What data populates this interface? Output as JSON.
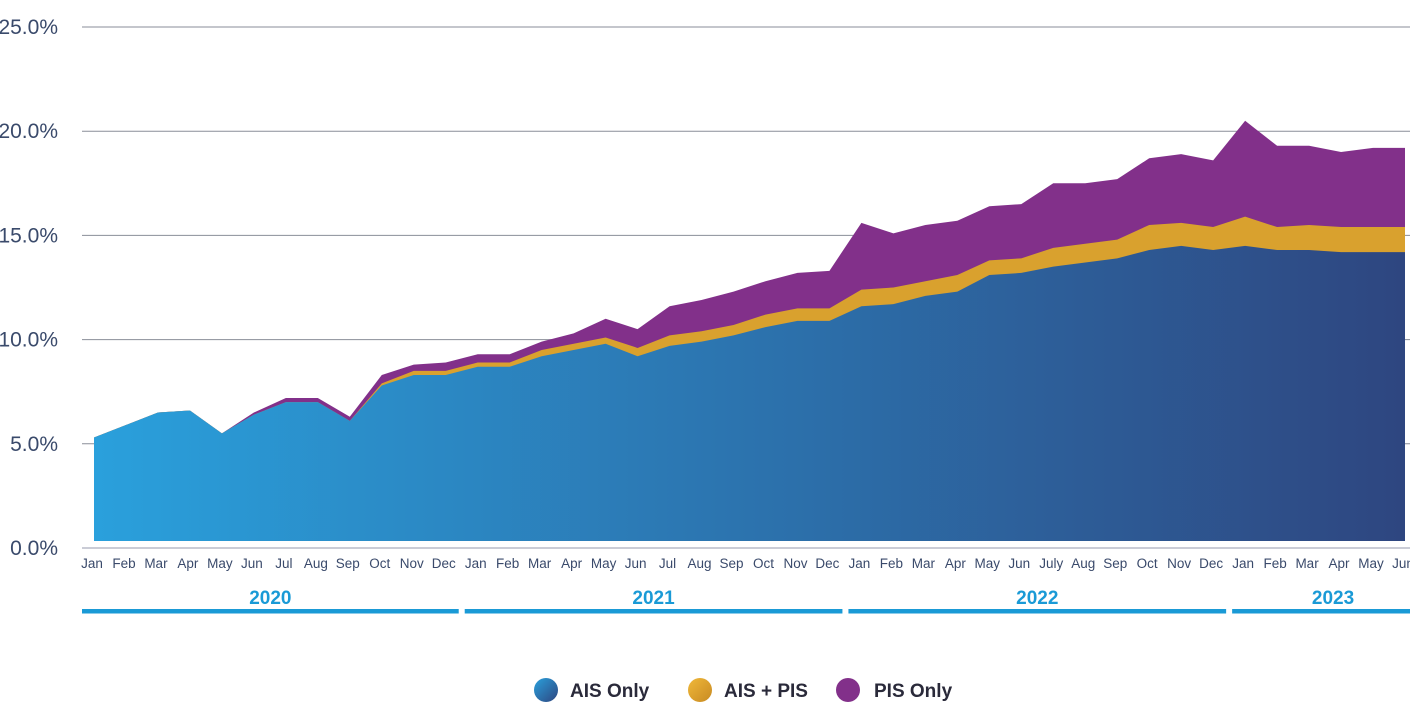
{
  "chart_data": {
    "type": "area",
    "stacked": true,
    "title": "",
    "xlabel": "",
    "ylabel": "",
    "ylim": [
      0,
      25
    ],
    "ytick_labels": [
      "0.0%",
      "5.0%",
      "10.0%",
      "15.0%",
      "20.0%",
      "25.0%"
    ],
    "ytick_values": [
      0,
      5,
      10,
      15,
      20,
      25
    ],
    "grid": "horizontal",
    "legend_position": "bottom-center",
    "categories": [
      "Jan",
      "Feb",
      "Mar",
      "Apr",
      "May",
      "Jun",
      "Jul",
      "Aug",
      "Sep",
      "Oct",
      "Nov",
      "Dec",
      "Jan",
      "Feb",
      "Mar",
      "Apr",
      "May",
      "Jun",
      "Jul",
      "Aug",
      "Sep",
      "Oct",
      "Nov",
      "Dec",
      "Jan",
      "Feb",
      "Mar",
      "Apr",
      "May",
      "Jun",
      "July",
      "Aug",
      "Sep",
      "Oct",
      "Nov",
      "Dec",
      "Jan",
      "Feb",
      "Mar",
      "Apr",
      "May",
      "Jun"
    ],
    "year_groups": [
      {
        "label": "2020",
        "start": 0,
        "end": 11
      },
      {
        "label": "2021",
        "start": 12,
        "end": 23
      },
      {
        "label": "2022",
        "start": 24,
        "end": 35
      },
      {
        "label": "2023",
        "start": 36,
        "end": 41
      }
    ],
    "series": [
      {
        "name": "AIS Only",
        "color_start": "#2aa0dc",
        "color_end": "#2e4680",
        "values": [
          5.3,
          5.9,
          6.5,
          6.6,
          5.5,
          6.4,
          7.0,
          7.0,
          6.1,
          7.8,
          8.3,
          8.3,
          8.7,
          8.7,
          9.2,
          9.5,
          9.8,
          9.2,
          9.7,
          9.9,
          10.2,
          10.6,
          10.9,
          10.9,
          11.6,
          11.7,
          12.1,
          12.3,
          13.1,
          13.2,
          13.5,
          13.7,
          13.9,
          14.3,
          14.5,
          14.3,
          14.5,
          14.3,
          14.3,
          14.2,
          14.2,
          14.2
        ]
      },
      {
        "name": "AIS + PIS",
        "color": "#d9a12e",
        "values": [
          0,
          0,
          0,
          0,
          0,
          0,
          0,
          0,
          0,
          0.1,
          0.2,
          0.2,
          0.2,
          0.2,
          0.3,
          0.3,
          0.3,
          0.4,
          0.5,
          0.5,
          0.5,
          0.6,
          0.6,
          0.6,
          0.8,
          0.8,
          0.7,
          0.8,
          0.7,
          0.7,
          0.9,
          0.9,
          0.9,
          1.2,
          1.1,
          1.1,
          1.4,
          1.1,
          1.2,
          1.2,
          1.2,
          1.2
        ]
      },
      {
        "name": "PIS Only",
        "color": "#82308a",
        "values": [
          0,
          0,
          0,
          0,
          0,
          0.1,
          0.2,
          0.2,
          0.2,
          0.4,
          0.3,
          0.4,
          0.4,
          0.4,
          0.4,
          0.5,
          0.9,
          0.9,
          1.4,
          1.5,
          1.6,
          1.6,
          1.7,
          1.8,
          3.2,
          2.6,
          2.7,
          2.6,
          2.6,
          2.6,
          3.1,
          2.9,
          2.9,
          3.2,
          3.3,
          3.2,
          4.6,
          3.9,
          3.8,
          3.6,
          3.8,
          3.8
        ]
      }
    ]
  }
}
